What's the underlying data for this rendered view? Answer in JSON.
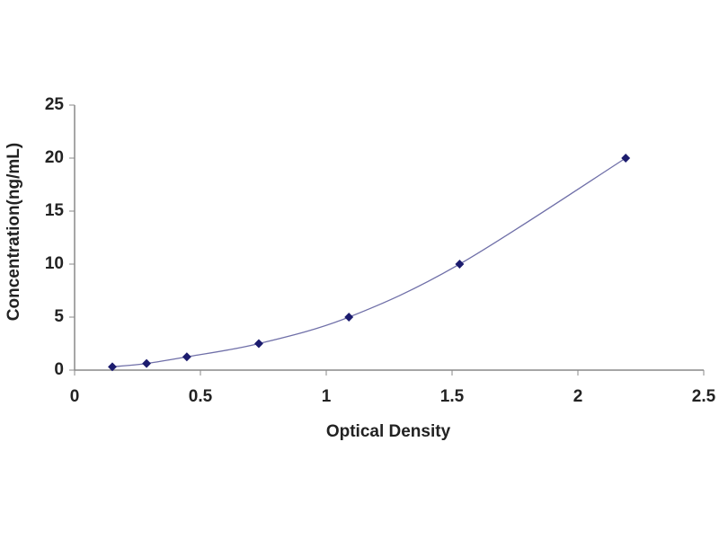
{
  "chart_data": {
    "type": "scatter",
    "x_label": "Optical Density",
    "y_label": "Concentration(ng/mL)",
    "series": [
      {
        "color": "#1c1c6e",
        "line_color": "#6f6fa8",
        "x": [
          0.15,
          0.286,
          0.446,
          0.732,
          1.09,
          1.53,
          2.19
        ],
        "values": [
          0.3125,
          0.625,
          1.25,
          2.5,
          5,
          10,
          20
        ]
      }
    ],
    "xlim": [
      0,
      2.5
    ],
    "xticks": [
      0,
      0.5,
      1,
      1.5,
      2,
      2.5
    ],
    "ylim": [
      0,
      25
    ],
    "yticks": [
      0,
      5,
      10,
      15,
      20,
      25
    ]
  }
}
